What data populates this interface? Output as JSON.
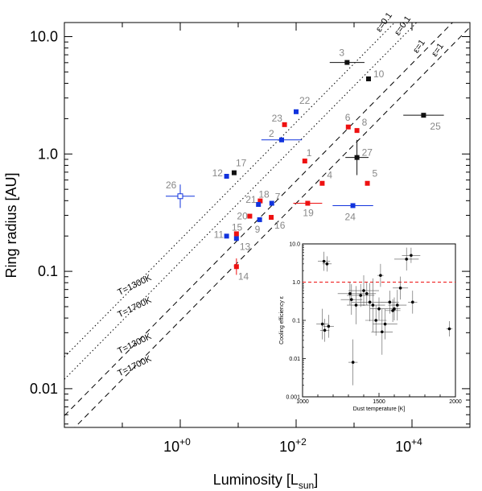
{
  "chart_data": [
    {
      "type": "scatter",
      "title": "",
      "xlabel": "Luminosity [L",
      "xlabel_sub": "sun",
      "xlabel_close": "]",
      "ylabel": "Ring radius [AU]",
      "xscale": "log",
      "yscale": "log",
      "xlim_log10": [
        -2.0,
        5.0
      ],
      "ylim_log10": [
        -2.33,
        1.12
      ],
      "x_ticks": [
        {
          "label": "10",
          "exp": "+0",
          "log10": 0
        },
        {
          "label": "10",
          "exp": "+2",
          "log10": 2
        },
        {
          "label": "10",
          "exp": "+4",
          "log10": 4
        }
      ],
      "y_ticks": [
        {
          "label": "0.01",
          "log10": -2
        },
        {
          "label": "0.1",
          "log10": -1
        },
        {
          "label": "1.0",
          "log10": 0
        },
        {
          "label": "10.0",
          "log10": 1
        }
      ],
      "colors": {
        "red": "#ee1111",
        "blue": "#1133dd",
        "black": "#111111",
        "label_gray": "#888888"
      },
      "reference_lines": [
        {
          "label": "ε=0.1",
          "temp_label": "T=1300K",
          "style": "dotted",
          "y_at_logL0": -0.73
        },
        {
          "label": "ε=0.1",
          "temp_label": "T=1700K",
          "style": "dotted",
          "y_at_logL0": -0.92
        },
        {
          "label": "ε=1",
          "temp_label": "T=1300K",
          "style": "dashed",
          "y_at_logL0": -1.23
        },
        {
          "label": "ε=1",
          "temp_label": "T=1700K",
          "style": "dashed",
          "y_at_logL0": -1.42
        }
      ],
      "points": [
        {
          "id": "1",
          "logL": 2.15,
          "logR": -0.06,
          "color": "red"
        },
        {
          "id": "2",
          "logL": 1.75,
          "logR": 0.12,
          "color": "blue",
          "xerr": 0.35
        },
        {
          "id": "3",
          "logL": 2.88,
          "logR": 0.78,
          "color": "black",
          "xerr": 0.3
        },
        {
          "id": "4",
          "logL": 2.45,
          "logR": -0.25,
          "color": "red"
        },
        {
          "id": "5",
          "logL": 3.23,
          "logR": -0.25,
          "color": "red"
        },
        {
          "id": "6",
          "logL": 2.9,
          "logR": 0.23,
          "color": "red"
        },
        {
          "id": "7",
          "logL": 1.58,
          "logR": -0.42,
          "color": "blue"
        },
        {
          "id": "8",
          "logL": 3.05,
          "logR": 0.2,
          "color": "red"
        },
        {
          "id": "9",
          "logL": 1.37,
          "logR": -0.56,
          "color": "blue"
        },
        {
          "id": "10",
          "logL": 3.25,
          "logR": 0.64,
          "color": "black"
        },
        {
          "id": "11",
          "logL": 0.8,
          "logR": -0.7,
          "color": "blue"
        },
        {
          "id": "12",
          "logL": 0.8,
          "logR": -0.19,
          "color": "blue"
        },
        {
          "id": "13",
          "logL": 0.97,
          "logR": -0.72,
          "color": "blue"
        },
        {
          "id": "14",
          "logL": 0.97,
          "logR": -0.96,
          "color": "red",
          "yerr": 0.07
        },
        {
          "id": "15",
          "logL": 0.97,
          "logR": -0.68,
          "color": "red"
        },
        {
          "id": "16",
          "logL": 1.57,
          "logR": -0.54,
          "color": "red"
        },
        {
          "id": "17",
          "logL": 0.93,
          "logR": -0.16,
          "color": "black"
        },
        {
          "id": "18",
          "logL": 1.38,
          "logR": -0.4,
          "color": "red"
        },
        {
          "id": "19",
          "logL": 2.2,
          "logR": -0.42,
          "color": "red",
          "xerr": 0.25
        },
        {
          "id": "20",
          "logL": 1.2,
          "logR": -0.53,
          "color": "red"
        },
        {
          "id": "21",
          "logL": 1.35,
          "logR": -0.43,
          "color": "blue"
        },
        {
          "id": "22",
          "logL": 2.0,
          "logR": 0.36,
          "color": "blue"
        },
        {
          "id": "23",
          "logL": 1.8,
          "logR": 0.25,
          "color": "red"
        },
        {
          "id": "24",
          "logL": 2.98,
          "logR": -0.44,
          "color": "blue",
          "xerr": 0.35
        },
        {
          "id": "25",
          "logL": 4.2,
          "logR": 0.33,
          "color": "black",
          "xerr": 0.35
        },
        {
          "id": "26",
          "logL": 0.0,
          "logR": -0.36,
          "color": "blue",
          "open": true,
          "xerr": 0.25,
          "yerr": 0.1
        },
        {
          "id": "27",
          "logL": 3.05,
          "logR": -0.03,
          "color": "black",
          "xerr": 0.2,
          "yerr": 0.15
        }
      ]
    },
    {
      "type": "scatter",
      "title": "",
      "xlabel": "Dust temperature [K]",
      "ylabel": "Cooling efficiency ε",
      "yscale": "log",
      "xlim": [
        1000,
        2000
      ],
      "ylim_log10": [
        -3,
        1
      ],
      "x_ticks": [
        "1000",
        "1500",
        "2000"
      ],
      "y_ticks": [
        "0.001",
        "0.01",
        "0.1",
        "1.0",
        "10.0"
      ],
      "reference_line": {
        "y": 1.0,
        "color": "#ee1111",
        "style": "dashed"
      },
      "points": [
        {
          "T": 1140,
          "eps": 3.5
        },
        {
          "T": 1160,
          "eps": 3.0
        },
        {
          "T": 1680,
          "eps": 4.0
        },
        {
          "T": 1710,
          "eps": 5.0
        },
        {
          "T": 1130,
          "eps": 0.08
        },
        {
          "T": 1145,
          "eps": 0.055
        },
        {
          "T": 1170,
          "eps": 0.07
        },
        {
          "T": 1330,
          "eps": 0.008
        },
        {
          "T": 1310,
          "eps": 0.5
        },
        {
          "T": 1320,
          "eps": 0.35
        },
        {
          "T": 1350,
          "eps": 0.25
        },
        {
          "T": 1380,
          "eps": 0.45
        },
        {
          "T": 1400,
          "eps": 0.6
        },
        {
          "T": 1420,
          "eps": 0.5
        },
        {
          "T": 1440,
          "eps": 0.3
        },
        {
          "T": 1460,
          "eps": 0.25
        },
        {
          "T": 1480,
          "eps": 0.1
        },
        {
          "T": 1500,
          "eps": 0.2
        },
        {
          "T": 1510,
          "eps": 1.5
        },
        {
          "T": 1520,
          "eps": 0.05
        },
        {
          "T": 1540,
          "eps": 0.08
        },
        {
          "T": 1570,
          "eps": 0.3
        },
        {
          "T": 1590,
          "eps": 0.18
        },
        {
          "T": 1600,
          "eps": 0.2
        },
        {
          "T": 1620,
          "eps": 0.25
        },
        {
          "T": 1640,
          "eps": 0.7
        },
        {
          "T": 1720,
          "eps": 0.3
        },
        {
          "T": 1960,
          "eps": 0.06
        }
      ]
    }
  ]
}
